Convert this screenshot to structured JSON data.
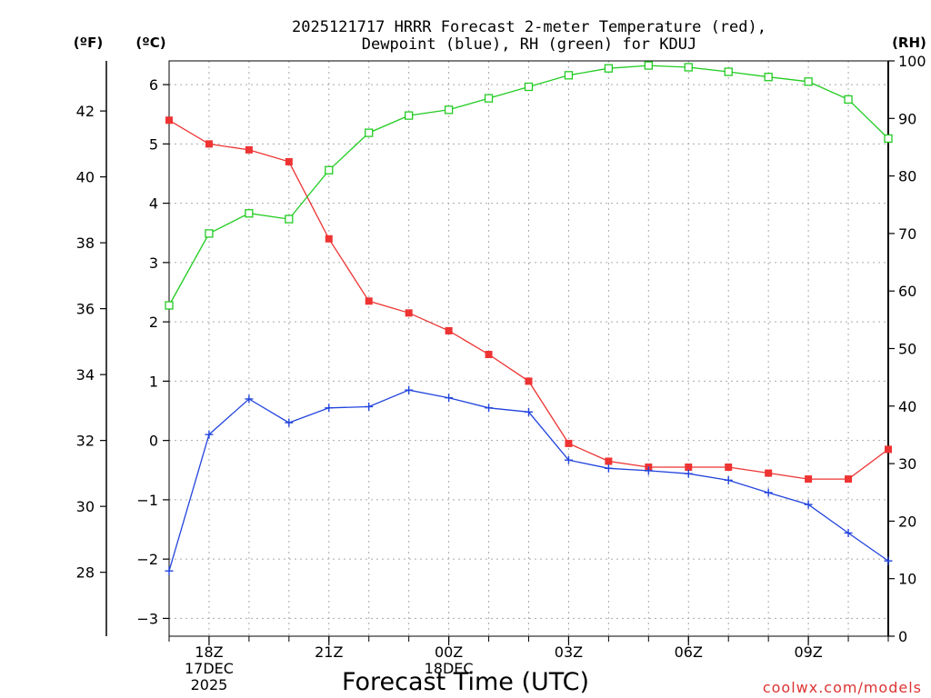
{
  "chart_data": {
    "type": "line",
    "title": "2025121717 HRRR Forecast 2-meter Temperature (red),",
    "subtitle": "Dewpoint (blue), RH (green) for KDUJ",
    "xlabel": "Forecast Time (UTC)",
    "unit_f": "(ºF)",
    "unit_c": "(ºC)",
    "unit_rh": "(RH)",
    "credit": "coolwx.com/models",
    "x": [
      0,
      1,
      2,
      3,
      4,
      5,
      6,
      7,
      8,
      9,
      10,
      11,
      12,
      13,
      14,
      15,
      16,
      17,
      18
    ],
    "xlim": [
      0,
      18
    ],
    "ylim_c": [
      -3.3,
      6.4
    ],
    "ylim_rh": [
      0,
      100
    ],
    "x_ticks": [
      {
        "i": 1,
        "lines": [
          "18Z",
          "17DEC",
          "2025"
        ]
      },
      {
        "i": 4,
        "lines": [
          "21Z"
        ]
      },
      {
        "i": 7,
        "lines": [
          "00Z",
          "18DEC"
        ]
      },
      {
        "i": 10,
        "lines": [
          "03Z"
        ]
      },
      {
        "i": 13,
        "lines": [
          "06Z"
        ]
      },
      {
        "i": 16,
        "lines": [
          "09Z"
        ]
      }
    ],
    "left_f_ticks": [
      "28",
      "30",
      "32",
      "34",
      "36",
      "38",
      "40",
      "42"
    ],
    "left_f_values": [
      28,
      30,
      32,
      34,
      36,
      38,
      40,
      42
    ],
    "c_ticks": [
      "−3",
      "−2",
      "−1",
      "0",
      "1",
      "2",
      "3",
      "4",
      "5",
      "6"
    ],
    "c_values": [
      -3,
      -2,
      -1,
      0,
      1,
      2,
      3,
      4,
      5,
      6
    ],
    "rh_ticks": [
      "0",
      "10",
      "20",
      "30",
      "40",
      "50",
      "60",
      "70",
      "80",
      "90",
      "100"
    ],
    "rh_values": [
      0,
      10,
      20,
      30,
      40,
      50,
      60,
      70,
      80,
      90,
      100
    ],
    "grid": true,
    "series": [
      {
        "name": "Temperature",
        "color": "#ee3333",
        "axis": "c",
        "marker": "filled-square",
        "values": [
          5.4,
          5.0,
          4.9,
          4.7,
          3.4,
          2.35,
          2.15,
          1.85,
          1.45,
          1.0,
          -0.05,
          -0.35,
          -0.45,
          -0.45,
          -0.45,
          -0.55,
          -0.65,
          -0.65,
          -0.15
        ]
      },
      {
        "name": "Dewpoint",
        "color": "#2244dd",
        "axis": "c",
        "marker": "plus",
        "values": [
          -2.2,
          0.1,
          0.7,
          0.3,
          0.55,
          0.57,
          0.85,
          0.72,
          0.55,
          0.48,
          -0.33,
          -0.47,
          -0.51,
          -0.56,
          -0.67,
          -0.88,
          -1.08,
          -1.56,
          -2.03
        ]
      },
      {
        "name": "RH",
        "color": "#22cc22",
        "axis": "rh",
        "marker": "open-square",
        "values": [
          57.5,
          70,
          73.5,
          72.5,
          81,
          87.5,
          90.5,
          91.5,
          93.5,
          95.5,
          97.5,
          98.7,
          99.2,
          98.9,
          98.1,
          97.2,
          96.4,
          93.3,
          86.5
        ]
      }
    ]
  }
}
